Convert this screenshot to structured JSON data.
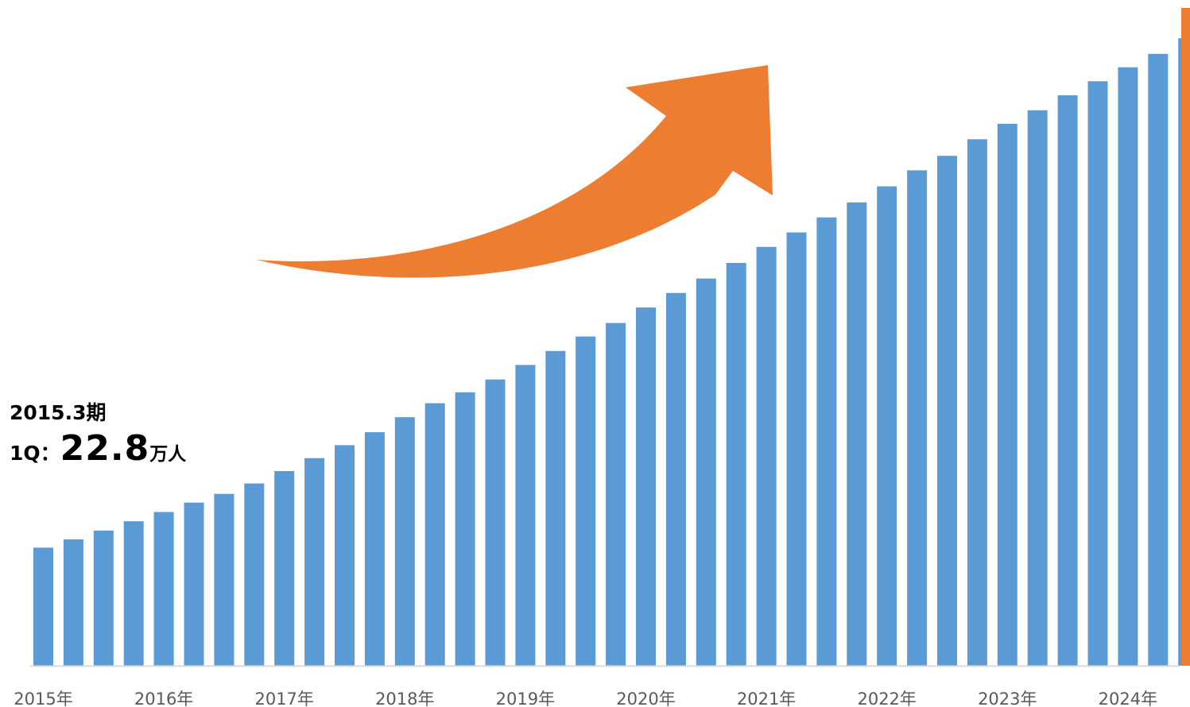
{
  "colors": {
    "bar": "#5b9bd5",
    "accent": "#ed7d31",
    "axis": "#d9d9d9",
    "tick_text": "#595959",
    "callout_text": "#000000"
  },
  "callout": {
    "period": "2015.3期",
    "quarter": "1Q",
    "separator": "：",
    "value": "22.8",
    "unit": "万人"
  },
  "chart_data": {
    "type": "bar",
    "title": "",
    "xlabel": "",
    "ylabel": "",
    "grid": false,
    "legend": "none",
    "ylim": [
      0,
      124
    ],
    "x_tick_labels": [
      "2015年",
      "2016年",
      "2017年",
      "2018年",
      "2019年",
      "2020年",
      "2021年",
      "2022年",
      "2023年",
      "2024年"
    ],
    "bars_per_year": 4,
    "decorations": [
      "upward-curved-arrow",
      "right-edge-vertical-line"
    ],
    "series": [
      {
        "values": [
          22.8,
          24.4,
          26.1,
          27.9,
          29.7,
          31.5,
          33.2,
          35.2,
          37.6,
          40.1,
          42.6,
          45.1,
          48.0,
          50.7,
          52.8,
          55.3,
          58.1,
          60.8,
          63.6,
          66.2,
          69.2,
          72.0,
          74.8,
          77.8,
          80.9,
          83.7,
          86.6,
          89.5,
          92.6,
          95.7,
          98.5,
          101.7,
          104.7,
          107.3,
          110.2,
          112.9,
          115.6,
          118.2,
          121.2,
          123.8
        ]
      }
    ]
  }
}
